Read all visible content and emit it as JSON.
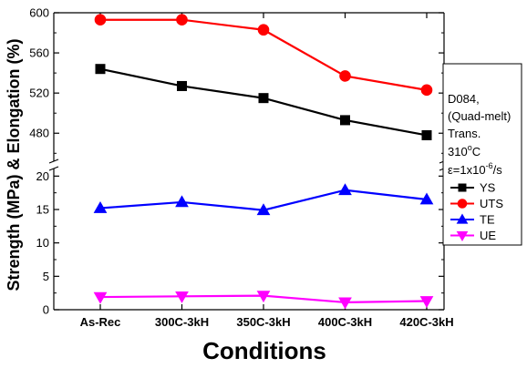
{
  "chart_data": {
    "type": "line",
    "xlabel": "Conditions",
    "ylabel": "Strength (MPa) & Elongation (%)",
    "categories": [
      "As-Rec",
      "300C-3kH",
      "350C-3kH",
      "400C-3kH",
      "420C-3kH"
    ],
    "axis_break": true,
    "upper_axis": {
      "ylim": [
        453,
        600
      ],
      "ticks": [
        "480",
        "520",
        "560",
        "600"
      ]
    },
    "lower_axis": {
      "ylim": [
        0,
        21
      ],
      "ticks": [
        "0",
        "5",
        "10",
        "15",
        "20"
      ]
    },
    "series": [
      {
        "name": "YS",
        "color": "#000000",
        "marker": "square",
        "panel": "upper",
        "values": [
          544,
          527,
          515,
          493,
          478
        ]
      },
      {
        "name": "UTS",
        "color": "#ff0000",
        "marker": "circle",
        "panel": "upper",
        "values": [
          593,
          593,
          583,
          537,
          523
        ]
      },
      {
        "name": "TE",
        "color": "#0000ff",
        "marker": "triangle-up",
        "panel": "lower",
        "values": [
          15.2,
          16.1,
          14.9,
          17.9,
          16.5
        ]
      },
      {
        "name": "UE",
        "color": "#ff00ff",
        "marker": "triangle-down",
        "panel": "lower",
        "values": [
          1.9,
          2.0,
          2.1,
          1.1,
          1.3
        ]
      }
    ],
    "legend": {
      "placement": "right",
      "annotation": {
        "material": "D084,",
        "process": "(Quad-melt)",
        "orientation": "Trans.",
        "temp_base": "310",
        "temp_sup": "o",
        "temp_unit": "C",
        "rate_base": "ε=1x10",
        "rate_sup": "-6",
        "rate_unit": "/s"
      }
    },
    "grid": false
  }
}
